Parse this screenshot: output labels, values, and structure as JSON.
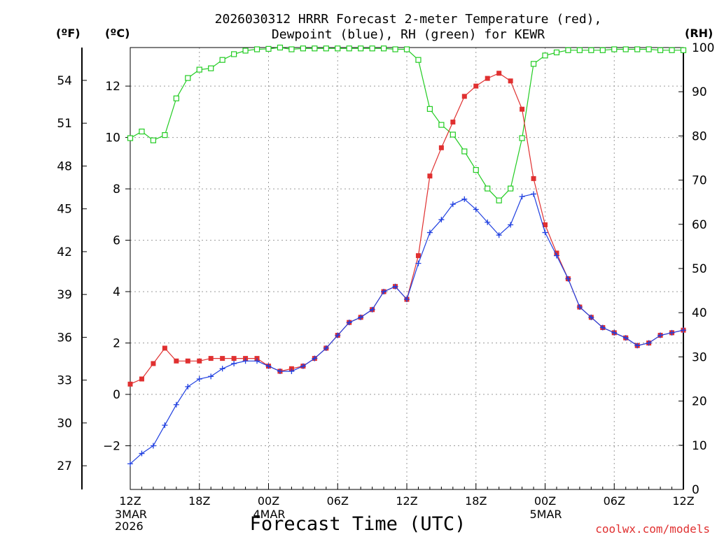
{
  "chart_data": {
    "type": "line",
    "title_lines": [
      "2026030312 HRRR Forecast 2-meter Temperature (red),",
      "Dewpoint (blue), RH (green) for KEWR"
    ],
    "left_unit_f": "(ºF)",
    "left_unit_c": "(ºC)",
    "right_unit": "(RH)",
    "xlabel": "Forecast Time (UTC)",
    "credit": "coolwx.com/models",
    "x_range_hours": [
      0,
      48
    ],
    "y_range_c": [
      -3.7,
      13.5
    ],
    "y_range_rh": [
      0,
      100
    ],
    "fahrenheit_ticks": [
      "27",
      "30",
      "33",
      "36",
      "39",
      "42",
      "45",
      "48",
      "51",
      "54"
    ],
    "celsius_ticks": [
      "−2",
      "0",
      "2",
      "4",
      "6",
      "8",
      "10",
      "12"
    ],
    "rh_ticks": [
      "0",
      "10",
      "20",
      "30",
      "40",
      "50",
      "60",
      "70",
      "80",
      "90",
      "100"
    ],
    "x_ticks": [
      {
        "hour": 0,
        "label": "12Z",
        "sub": [
          "3MAR",
          "2026"
        ]
      },
      {
        "hour": 6,
        "label": "18Z",
        "sub": []
      },
      {
        "hour": 12,
        "label": "00Z",
        "sub": [
          "4MAR"
        ]
      },
      {
        "hour": 18,
        "label": "06Z",
        "sub": []
      },
      {
        "hour": 24,
        "label": "12Z",
        "sub": []
      },
      {
        "hour": 30,
        "label": "18Z",
        "sub": []
      },
      {
        "hour": 36,
        "label": "00Z",
        "sub": [
          "5MAR"
        ]
      },
      {
        "hour": 42,
        "label": "06Z",
        "sub": []
      },
      {
        "hour": 48,
        "label": "12Z",
        "sub": []
      }
    ],
    "series": [
      {
        "name": "2-meter Temperature",
        "unit": "C",
        "color": "#e03030",
        "marker": "filled-square",
        "start_hour": 0,
        "values": [
          0.4,
          0.6,
          1.2,
          1.8,
          1.3,
          1.3,
          1.3,
          1.4,
          1.4,
          1.4,
          1.4,
          1.4,
          1.1,
          0.9,
          1.0,
          1.1,
          1.4,
          1.8,
          2.3,
          2.8,
          3.0,
          3.3,
          4.0,
          4.2,
          3.7,
          5.4,
          8.5,
          9.6,
          10.6,
          11.6,
          12.0,
          12.3,
          12.5,
          12.2,
          11.1,
          8.4,
          6.6,
          5.5,
          4.5,
          3.4,
          3.0,
          2.6,
          2.4,
          2.2,
          1.9,
          2.0,
          2.3,
          2.4,
          2.5
        ]
      },
      {
        "name": "Dewpoint",
        "unit": "C",
        "color": "#1f3fe0",
        "marker": "plus",
        "start_hour": 0,
        "values": [
          -2.7,
          -2.3,
          -2.0,
          -1.2,
          -0.4,
          0.3,
          0.6,
          0.7,
          1.0,
          1.2,
          1.3,
          1.3,
          1.1,
          0.9,
          0.9,
          1.1,
          1.4,
          1.8,
          2.3,
          2.8,
          3.0,
          3.3,
          4.0,
          4.2,
          3.7,
          5.1,
          6.3,
          6.8,
          7.4,
          7.6,
          7.2,
          6.7,
          6.2,
          6.6,
          7.7,
          7.8,
          6.3,
          5.4,
          4.5,
          3.4,
          3.0,
          2.6,
          2.4,
          2.2,
          1.9,
          2.0,
          2.3,
          2.4,
          2.5
        ]
      },
      {
        "name": "Relative Humidity",
        "unit": "%",
        "color": "#22cc22",
        "marker": "open-square",
        "start_hour": 0,
        "values": [
          79.5,
          81,
          79,
          80.2,
          88.5,
          93.1,
          95,
          95.3,
          97.2,
          98.5,
          99.3,
          99.6,
          99.7,
          100,
          99.6,
          99.8,
          99.8,
          99.8,
          99.8,
          99.8,
          99.8,
          99.8,
          99.8,
          99.6,
          99.6,
          97.2,
          86.1,
          82.5,
          80.3,
          76.5,
          72.3,
          68.1,
          65.4,
          68.1,
          79.5,
          96.3,
          98.2,
          98.9,
          99.4,
          99.4,
          99.4,
          99.4,
          99.6,
          99.6,
          99.6,
          99.6,
          99.4,
          99.4,
          99.4
        ]
      }
    ]
  }
}
